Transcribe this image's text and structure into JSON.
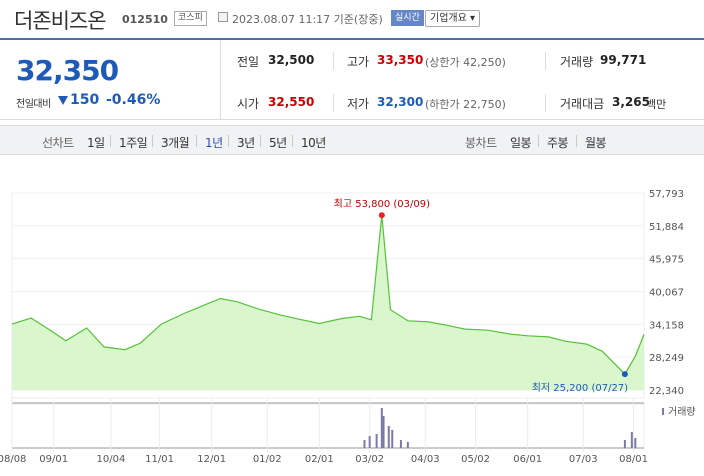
{
  "header": {
    "company_name": "더존비즈온",
    "stock_code": "012510",
    "market_badge": "코스피",
    "date_icon": "calendar-clock-icon",
    "datetime_text": "2023.08.07 11:17  기준(장중)",
    "realtime_badge": "실시간",
    "company_info_button": "기업개요 ▾"
  },
  "quote": {
    "current_price": "32,350",
    "change_label": "전일대비",
    "change_direction": "down",
    "change_value": "150",
    "change_rate": "-0.46%",
    "prev_close_label": "전일",
    "prev_close": "32,500",
    "high_label": "고가",
    "high": "33,350",
    "upper_limit": "(상한가 42,250)",
    "volume_label": "거래량",
    "volume": "99,771",
    "open_label": "시가",
    "open": "32,550",
    "low_label": "저가",
    "low": "32,300",
    "lower_limit": "(하한가 22,750)",
    "amount_label": "거래대금",
    "amount": "3,265",
    "amount_unit": "백만"
  },
  "colors": {
    "up": "#cc0000",
    "down": "#1e5bb8",
    "accent": "#4f6faa",
    "line": "#55c23a",
    "fill": "#d3f4c3"
  },
  "period_bar": {
    "line_chart_label": "선차트",
    "periods": [
      "1일",
      "1주일",
      "3개월",
      "1년",
      "3년",
      "5년",
      "10년"
    ],
    "selected_period": "1년",
    "candle_chart_label": "봉차트",
    "candle_options": [
      "일봉",
      "주봉",
      "월봉"
    ]
  },
  "chart_data": {
    "type": "area",
    "y_ticks": [
      "57,793",
      "51,884",
      "45,975",
      "40,067",
      "34,158",
      "28,249",
      "22,340"
    ],
    "ylim": [
      22340,
      57793
    ],
    "x_ticks": [
      "08/08",
      "09/01",
      "10/04",
      "11/01",
      "12/01",
      "01/02",
      "02/01",
      "03/02",
      "04/03",
      "05/02",
      "06/01",
      "07/03",
      "08/01"
    ],
    "max_annotation": "최고 53,800 (03/09)",
    "min_annotation": "최저 25,200 (07/27)",
    "volume_legend": "거래량",
    "series": [
      {
        "x": [
          "2022-08-08",
          "2022-08-19",
          "2022-08-30",
          "2022-09-08",
          "2022-09-20",
          "2022-09-30",
          "2022-10-12",
          "2022-10-21",
          "2022-11-02",
          "2022-11-15",
          "2022-11-25",
          "2022-12-06",
          "2022-12-16",
          "2022-12-28",
          "2023-01-10",
          "2023-01-20",
          "2023-02-01",
          "2023-02-14",
          "2023-02-24",
          "2023-03-03",
          "2023-03-09",
          "2023-03-14",
          "2023-03-24",
          "2023-04-05",
          "2023-04-17",
          "2023-04-26",
          "2023-05-09",
          "2023-05-22",
          "2023-06-01",
          "2023-06-13",
          "2023-06-23",
          "2023-07-05",
          "2023-07-14",
          "2023-07-27",
          "2023-08-02",
          "2023-08-07"
        ],
        "y": [
          34200,
          35300,
          33100,
          31200,
          33500,
          30100,
          29600,
          30800,
          34200,
          36100,
          37400,
          38800,
          38200,
          36900,
          35800,
          35100,
          34300,
          35200,
          35600,
          35000,
          53800,
          36800,
          34800,
          34600,
          33900,
          33300,
          33100,
          32400,
          32100,
          31900,
          31100,
          30600,
          29300,
          25200,
          28400,
          32350
        ]
      }
    ],
    "volume_x": [
      "2023-02-27",
      "2023-03-02",
      "2023-03-06",
      "2023-03-09",
      "2023-03-10",
      "2023-03-13",
      "2023-03-15",
      "2023-03-20",
      "2023-03-24",
      "2023-07-27",
      "2023-07-31",
      "2023-08-02"
    ],
    "volume_y": [
      0.2,
      0.3,
      0.35,
      1.0,
      0.8,
      0.55,
      0.45,
      0.2,
      0.15,
      0.2,
      0.4,
      0.25
    ]
  }
}
